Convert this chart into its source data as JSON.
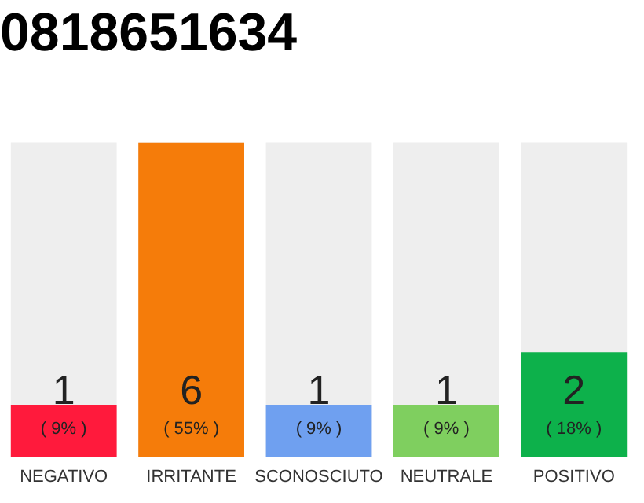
{
  "chart_data": {
    "type": "bar",
    "title": "0818651634",
    "categories": [
      "NEGATIVO",
      "IRRITANTE",
      "SCONOSCIUTO",
      "NEUTRALE",
      "POSITIVO"
    ],
    "values": [
      1,
      6,
      1,
      1,
      2
    ],
    "colors": [
      "#ff1a3c",
      "#f57c0a",
      "#6fa0f0",
      "#7fcf5f",
      "#0db14b"
    ],
    "ylim": [
      0,
      6
    ],
    "tick_labels": "x",
    "grid": false,
    "legend": false,
    "data_labels": true,
    "annotations": [
      "( 9% )",
      "( 55% )",
      "( 9% )",
      "( 9% )",
      "( 18% )"
    ]
  }
}
